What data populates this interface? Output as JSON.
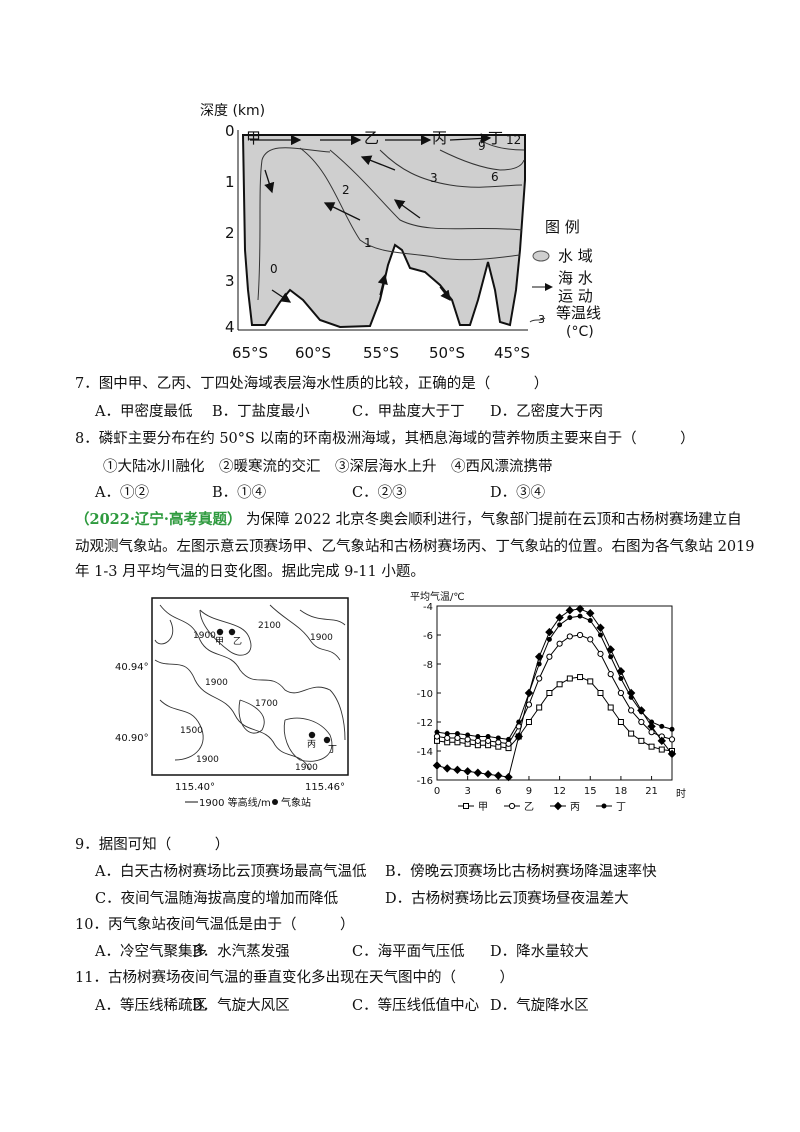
{
  "figure1": {
    "y_axis_label": "深度 (km)",
    "yticks": [
      "0",
      "1",
      "2",
      "3",
      "4"
    ],
    "xticks": [
      "65°S",
      "60°S",
      "55°S",
      "50°S",
      "45°S"
    ],
    "site_labels": [
      "甲",
      "乙",
      "丙",
      "丁"
    ],
    "isotherm_labels": [
      "0",
      "1",
      "2",
      "3",
      "6",
      "9",
      "12"
    ],
    "legend": {
      "title": "图 例",
      "water": "水 域",
      "motion": [
        "海 水",
        "运 动"
      ],
      "isotherm": "等温线",
      "isotherm_unit": "(°C)",
      "isotherm_sample": "3"
    }
  },
  "questions": [
    {
      "stem": "7．图中甲、乙丙、丁四处海域表层海水性质的比较，正确的是（　　　）",
      "options": [
        "A．甲密度最低",
        "B．丁盐度最小",
        "C．甲盐度大于丁",
        "D．乙密度大于丙"
      ]
    },
    {
      "stem": "8．磷虾主要分布在约 50°S 以南的环南极洲海域，其栖息海域的营养物质主要来自于（　　　）",
      "items": "①大陆冰川融化　②暖寒流的交汇　③深层海水上升　④西风漂流携带",
      "options": [
        "A．①②",
        "B．①④",
        "C．②③",
        "D．③④"
      ]
    }
  ],
  "intro": {
    "source": "（2022·辽宁·高考真题）",
    "lines": [
      "为保障 2022 北京冬奥会顺利进行，气象部门提前在云顶和古杨树赛场建立自",
      "动观测气象站。左图示意云顶赛场甲、乙气象站和古杨树赛场丙、丁气象站的位置。右图为各气象站 2019",
      "年 1-3 月平均气温的日变化图。据此完成 9-11 小题。"
    ]
  },
  "map": {
    "contour_labels": [
      "1900",
      "2100",
      "1900",
      "1900",
      "1700",
      "1500",
      "1900",
      "1900"
    ],
    "lat_labels": [
      "40.94°",
      "40.90°"
    ],
    "lon_labels": [
      "115.40°",
      "115.46°"
    ],
    "stations": [
      "甲",
      "乙",
      "丙",
      "丁"
    ],
    "legend": [
      "1900 等高线/m",
      "气象站"
    ]
  },
  "chart_data": {
    "type": "line",
    "y_axis_label": "平均气温/℃",
    "x_unit_label": "时",
    "x": [
      0,
      1,
      2,
      3,
      4,
      5,
      6,
      7,
      8,
      9,
      10,
      11,
      12,
      13,
      14,
      15,
      16,
      17,
      18,
      19,
      20,
      21,
      22,
      23
    ],
    "xlim": [
      0,
      23
    ],
    "xticks": [
      0,
      3,
      6,
      9,
      12,
      15,
      18,
      21
    ],
    "ylim": [
      -16,
      -4
    ],
    "yticks": [
      -4,
      -6,
      -8,
      -10,
      -12,
      -14,
      -16
    ],
    "series": [
      {
        "name": "甲",
        "color": "#000",
        "marker": "square",
        "values": [
          -13.3,
          -13.4,
          -13.4,
          -13.5,
          -13.6,
          -13.6,
          -13.7,
          -13.8,
          -13,
          -12,
          -11,
          -10,
          -9.4,
          -9,
          -8.9,
          -9.2,
          -10,
          -11,
          -12,
          -12.8,
          -13.3,
          -13.7,
          -13.9,
          -14
        ]
      },
      {
        "name": "乙",
        "color": "#000",
        "marker": "circle",
        "values": [
          -13,
          -13.1,
          -13.1,
          -13.2,
          -13.3,
          -13.3,
          -13.4,
          -13.5,
          -12.3,
          -10.8,
          -9,
          -7.5,
          -6.6,
          -6.1,
          -6,
          -6.3,
          -7.3,
          -8.7,
          -10,
          -11.2,
          -12,
          -12.7,
          -13,
          -13.2
        ]
      },
      {
        "name": "丙",
        "color": "#000",
        "marker": "diamond",
        "values": [
          -15,
          -15.2,
          -15.3,
          -15.4,
          -15.5,
          -15.6,
          -15.7,
          -15.8,
          -13,
          -10,
          -7.5,
          -5.8,
          -4.8,
          -4.3,
          -4.2,
          -4.5,
          -5.5,
          -7,
          -8.5,
          -10,
          -11.2,
          -12.3,
          -13.3,
          -14.2
        ]
      },
      {
        "name": "丁",
        "color": "#000",
        "marker": "dot",
        "values": [
          -12.7,
          -12.8,
          -12.8,
          -12.9,
          -13,
          -13,
          -13.1,
          -13.2,
          -12,
          -10,
          -8,
          -6.3,
          -5.3,
          -4.8,
          -4.7,
          -5,
          -6,
          -7.5,
          -9,
          -10.3,
          -11.3,
          -12,
          -12.3,
          -12.5
        ]
      }
    ]
  },
  "questions2": [
    {
      "stem": "9．据图可知（　　　）",
      "options": [
        "A．白天古杨树赛场比云顶赛场最高气温低",
        "B．傍晚云顶赛场比古杨树赛场降温速率快",
        "C．夜间气温随海拔高度的增加而降低",
        "D．古杨树赛场比云顶赛场昼夜温差大"
      ]
    },
    {
      "stem": "10．丙气象站夜间气温低是由于（　　　）",
      "options": [
        "A．冷空气聚集多",
        "B．水汽蒸发强",
        "C．海平面气压低",
        "D．降水量较大"
      ]
    },
    {
      "stem": "11．古杨树赛场夜间气温的垂直变化多出现在天气图中的（　　　）",
      "options": [
        "A．等压线稀疏区",
        "B．气旋大风区",
        "C．等压线低值中心",
        "D．气旋降水区"
      ]
    }
  ]
}
